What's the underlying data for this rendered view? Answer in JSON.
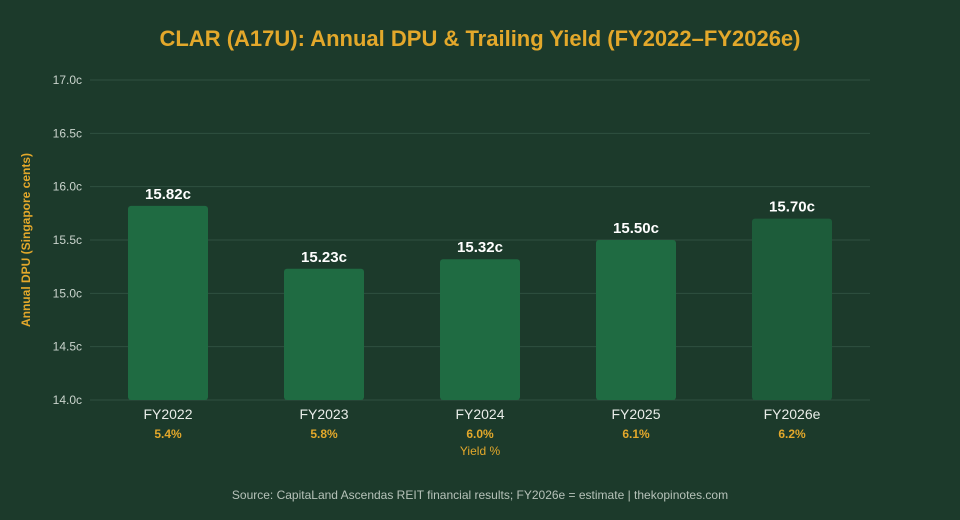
{
  "chart_data": {
    "type": "bar",
    "title": "CLAR (A17U): Annual DPU & Trailing Yield (FY2022–FY2026e)",
    "ylabel": "Annual DPU (Singapore cents)",
    "ylim": [
      14.0,
      17.0
    ],
    "yticks": [
      {
        "value": 14.0,
        "label": "14.0c"
      },
      {
        "value": 14.5,
        "label": "14.5c"
      },
      {
        "value": 15.0,
        "label": "15.0c"
      },
      {
        "value": 15.5,
        "label": "15.5c"
      },
      {
        "value": 16.0,
        "label": "16.0c"
      },
      {
        "value": 16.5,
        "label": "16.5c"
      },
      {
        "value": 17.0,
        "label": "17.0c"
      }
    ],
    "categories": [
      "FY2022",
      "FY2023",
      "FY2024",
      "FY2025",
      "FY2026e"
    ],
    "values": [
      15.82,
      15.23,
      15.32,
      15.5,
      15.7
    ],
    "data_labels": [
      "15.82c",
      "15.23c",
      "15.32c",
      "15.50c",
      "15.70c"
    ],
    "yields": [
      "5.4%",
      "5.8%",
      "6.0%",
      "6.1%",
      "6.2%"
    ],
    "yield_axis_label": "Yield %",
    "grid": true,
    "legend": "none",
    "colors": {
      "background": "#1c3a2b",
      "bar": "#1f6b42",
      "bar_estimate": "#1d5c3a",
      "accent": "#e3a82b"
    }
  },
  "source": "Source: CapitaLand Ascendas REIT financial results; FY2026e = estimate | thekopinotes.com"
}
